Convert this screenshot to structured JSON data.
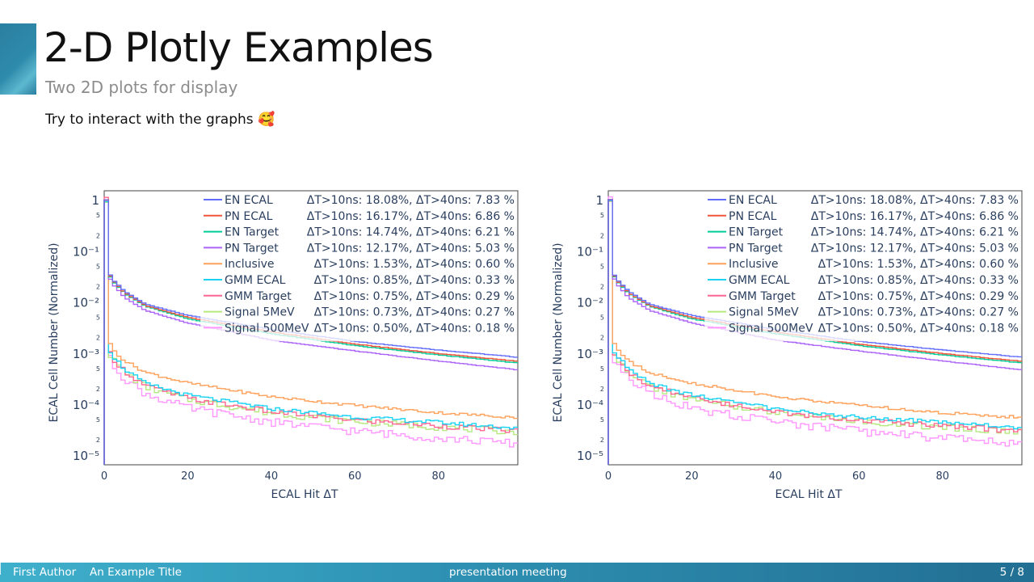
{
  "slide": {
    "title": "2-D Plotly Examples",
    "subtitle": "Two 2D plots for display",
    "note": "Try to interact with the graphs 🥰",
    "accent_color": "#2f8bab"
  },
  "footer": {
    "author": "First Author",
    "short_title": "An Example Title",
    "event": "presentation meeting",
    "page": "5 / 8"
  },
  "chart_data": [
    {
      "type": "line",
      "step": true,
      "xlabel": "ECAL Hit ΔT",
      "ylabel": "ECAL Cell Number (Normalized)",
      "xlim": [
        0,
        99
      ],
      "ylim": [
        6.5e-06,
        1.5
      ],
      "yscale": "log",
      "x_ticks": [
        0,
        20,
        40,
        60,
        80
      ],
      "y_ticks": [
        "1",
        "10⁻¹",
        "10⁻²",
        "10⁻³",
        "10⁻⁴",
        "10⁻⁵"
      ],
      "legend_position": "top-right",
      "series": [
        {
          "name": "EN ECAL",
          "stats": "ΔT>10ns: 18.08%, ΔT>40ns: 7.83 %",
          "color": "#636efa",
          "x": [
            0,
            1,
            2,
            5,
            10,
            20,
            40,
            60,
            80,
            99
          ],
          "y": [
            1,
            0.04,
            0.028,
            0.016,
            0.009,
            0.0055,
            0.0029,
            0.0017,
            0.00115,
            0.00083
          ]
        },
        {
          "name": "PN ECAL",
          "stats": "ΔT>10ns: 16.17%, ΔT>40ns: 6.86 %",
          "color": "#ef553b",
          "x": [
            0,
            1,
            2,
            5,
            10,
            20,
            40,
            60,
            80,
            99
          ],
          "y": [
            1,
            0.038,
            0.027,
            0.015,
            0.0085,
            0.005,
            0.0026,
            0.0015,
            0.00098,
            0.00069
          ]
        },
        {
          "name": "EN Target",
          "stats": "ΔT>10ns: 14.74%, ΔT>40ns: 6.21 %",
          "color": "#00cc96",
          "x": [
            0,
            1,
            2,
            5,
            10,
            20,
            40,
            60,
            80,
            99
          ],
          "y": [
            1,
            0.037,
            0.026,
            0.0145,
            0.0082,
            0.0047,
            0.0024,
            0.0014,
            0.00092,
            0.00064
          ]
        },
        {
          "name": "PN Target",
          "stats": "ΔT>10ns: 12.17%, ΔT>40ns: 5.03 %",
          "color": "#ab63fa",
          "x": [
            0,
            1,
            2,
            5,
            10,
            20,
            40,
            60,
            80,
            99
          ],
          "y": [
            1,
            0.034,
            0.023,
            0.012,
            0.0068,
            0.0039,
            0.0018,
            0.0011,
            0.0007,
            0.00047
          ]
        },
        {
          "name": "Inclusive",
          "stats": "ΔT>10ns: 1.53%, ΔT>40ns: 0.60 %",
          "color": "#ffa15a",
          "x": [
            0,
            1,
            2,
            5,
            10,
            20,
            40,
            60,
            80,
            99
          ],
          "y": [
            1,
            0.0018,
            0.0012,
            0.0007,
            0.00042,
            0.00026,
            0.00014,
            9.5e-05,
            6.8e-05,
            5.5e-05
          ]
        },
        {
          "name": "GMM ECAL",
          "stats": "ΔT>10ns: 0.85%, ΔT>40ns: 0.33 %",
          "color": "#19d3f3",
          "x": [
            0,
            1,
            2,
            5,
            10,
            20,
            40,
            60,
            80,
            99
          ],
          "y": [
            1,
            0.0013,
            0.0009,
            0.00048,
            0.00025,
            0.00015,
            8.2e-05,
            5.6e-05,
            4.4e-05,
            3.4e-05
          ]
        },
        {
          "name": "GMM Target",
          "stats": "ΔT>10ns: 0.75%, ΔT>40ns: 0.29 %",
          "color": "#ff6692",
          "x": [
            0,
            1,
            2,
            5,
            10,
            20,
            40,
            60,
            80,
            99
          ],
          "y": [
            1,
            0.0012,
            0.00082,
            0.00044,
            0.00023,
            0.00013,
            7.2e-05,
            4.9e-05,
            3.8e-05,
            3e-05
          ]
        },
        {
          "name": "Signal 5MeV",
          "stats": "ΔT>10ns: 0.73%, ΔT>40ns: 0.27 %",
          "color": "#b6e880",
          "x": [
            0,
            1,
            2,
            5,
            10,
            20,
            40,
            60,
            80,
            99
          ],
          "y": [
            1,
            0.0011,
            0.00078,
            0.00042,
            0.00022,
            0.000125,
            6.8e-05,
            4.6e-05,
            3.6e-05,
            2.9e-05
          ]
        },
        {
          "name": "Signal 500MeV",
          "stats": "ΔT>10ns: 0.50%, ΔT>40ns: 0.18 %",
          "color": "#ff97ff",
          "x": [
            0,
            1,
            2,
            5,
            10,
            20,
            40,
            60,
            80,
            99
          ],
          "y": [
            1,
            0.00095,
            0.00062,
            0.00032,
            0.00016,
            8.5e-05,
            4.5e-05,
            3e-05,
            2.2e-05,
            1.7e-05
          ]
        }
      ]
    },
    {
      "type": "line",
      "step": true,
      "xlabel": "ECAL Hit ΔT",
      "ylabel": "ECAL Cell Number (Normalized)",
      "xlim": [
        0,
        99
      ],
      "ylim": [
        6.5e-06,
        1.5
      ],
      "yscale": "log",
      "x_ticks": [
        0,
        20,
        40,
        60,
        80
      ],
      "y_ticks": [
        "1",
        "10⁻¹",
        "10⁻²",
        "10⁻³",
        "10⁻⁴",
        "10⁻⁵"
      ],
      "legend_position": "top-right",
      "series": [
        {
          "name": "EN ECAL",
          "stats": "ΔT>10ns: 18.08%, ΔT>40ns: 7.83 %",
          "color": "#636efa",
          "x": [
            0,
            1,
            2,
            5,
            10,
            20,
            40,
            60,
            80,
            99
          ],
          "y": [
            1,
            0.04,
            0.028,
            0.016,
            0.009,
            0.0055,
            0.0029,
            0.0017,
            0.00115,
            0.00083
          ]
        },
        {
          "name": "PN ECAL",
          "stats": "ΔT>10ns: 16.17%, ΔT>40ns: 6.86 %",
          "color": "#ef553b",
          "x": [
            0,
            1,
            2,
            5,
            10,
            20,
            40,
            60,
            80,
            99
          ],
          "y": [
            1,
            0.038,
            0.027,
            0.015,
            0.0085,
            0.005,
            0.0026,
            0.0015,
            0.00098,
            0.00069
          ]
        },
        {
          "name": "EN Target",
          "stats": "ΔT>10ns: 14.74%, ΔT>40ns: 6.21 %",
          "color": "#00cc96",
          "x": [
            0,
            1,
            2,
            5,
            10,
            20,
            40,
            60,
            80,
            99
          ],
          "y": [
            1,
            0.037,
            0.026,
            0.0145,
            0.0082,
            0.0047,
            0.0024,
            0.0014,
            0.00092,
            0.00064
          ]
        },
        {
          "name": "PN Target",
          "stats": "ΔT>10ns: 12.17%, ΔT>40ns: 5.03 %",
          "color": "#ab63fa",
          "x": [
            0,
            1,
            2,
            5,
            10,
            20,
            40,
            60,
            80,
            99
          ],
          "y": [
            1,
            0.034,
            0.023,
            0.012,
            0.0068,
            0.0039,
            0.0018,
            0.0011,
            0.0007,
            0.00047
          ]
        },
        {
          "name": "Inclusive",
          "stats": "ΔT>10ns: 1.53%, ΔT>40ns: 0.60 %",
          "color": "#ffa15a",
          "x": [
            0,
            1,
            2,
            5,
            10,
            20,
            40,
            60,
            80,
            99
          ],
          "y": [
            1,
            0.0018,
            0.0012,
            0.0007,
            0.00042,
            0.00026,
            0.00014,
            9.5e-05,
            6.8e-05,
            5.5e-05
          ]
        },
        {
          "name": "GMM ECAL",
          "stats": "ΔT>10ns: 0.85%, ΔT>40ns: 0.33 %",
          "color": "#19d3f3",
          "x": [
            0,
            1,
            2,
            5,
            10,
            20,
            40,
            60,
            80,
            99
          ],
          "y": [
            1,
            0.0013,
            0.0009,
            0.00048,
            0.00025,
            0.00015,
            8.2e-05,
            5.6e-05,
            4.4e-05,
            3.4e-05
          ]
        },
        {
          "name": "GMM Target",
          "stats": "ΔT>10ns: 0.75%, ΔT>40ns: 0.29 %",
          "color": "#ff6692",
          "x": [
            0,
            1,
            2,
            5,
            10,
            20,
            40,
            60,
            80,
            99
          ],
          "y": [
            1,
            0.0012,
            0.00082,
            0.00044,
            0.00023,
            0.00013,
            7.2e-05,
            4.9e-05,
            3.8e-05,
            3e-05
          ]
        },
        {
          "name": "Signal 5MeV",
          "stats": "ΔT>10ns: 0.73%, ΔT>40ns: 0.27 %",
          "color": "#b6e880",
          "x": [
            0,
            1,
            2,
            5,
            10,
            20,
            40,
            60,
            80,
            99
          ],
          "y": [
            1,
            0.0011,
            0.00078,
            0.00042,
            0.00022,
            0.000125,
            6.8e-05,
            4.6e-05,
            3.6e-05,
            2.9e-05
          ]
        },
        {
          "name": "Signal 500MeV",
          "stats": "ΔT>10ns: 0.50%, ΔT>40ns: 0.18 %",
          "color": "#ff97ff",
          "x": [
            0,
            1,
            2,
            5,
            10,
            20,
            40,
            60,
            80,
            99
          ],
          "y": [
            1,
            0.00095,
            0.00062,
            0.00032,
            0.00016,
            8.5e-05,
            4.5e-05,
            3e-05,
            2.2e-05,
            1.7e-05
          ]
        }
      ]
    }
  ]
}
